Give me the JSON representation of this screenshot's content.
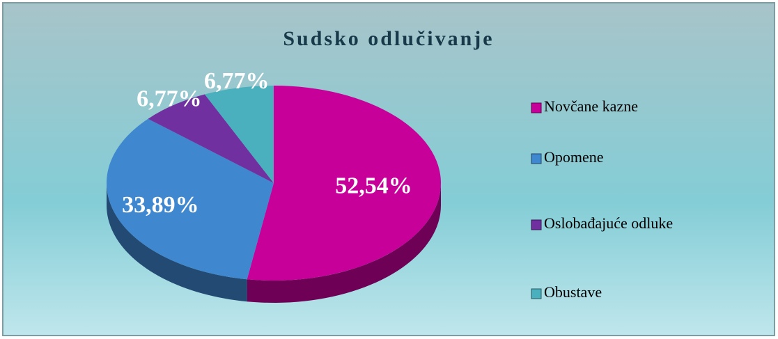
{
  "chart_data": {
    "type": "pie",
    "title": "Sudsko odlučivanje",
    "categories": [
      "Novčane kazne",
      "Opomene",
      "Oslobađajuće odluke",
      "Obustave"
    ],
    "values": [
      52.54,
      33.89,
      6.77,
      6.77
    ],
    "value_labels": [
      "52,54%",
      "33,89%",
      "6,77%",
      "6,77%"
    ],
    "colors": [
      "#c8009a",
      "#3f87cf",
      "#7030a0",
      "#4ab0bd"
    ],
    "legend": "right"
  }
}
